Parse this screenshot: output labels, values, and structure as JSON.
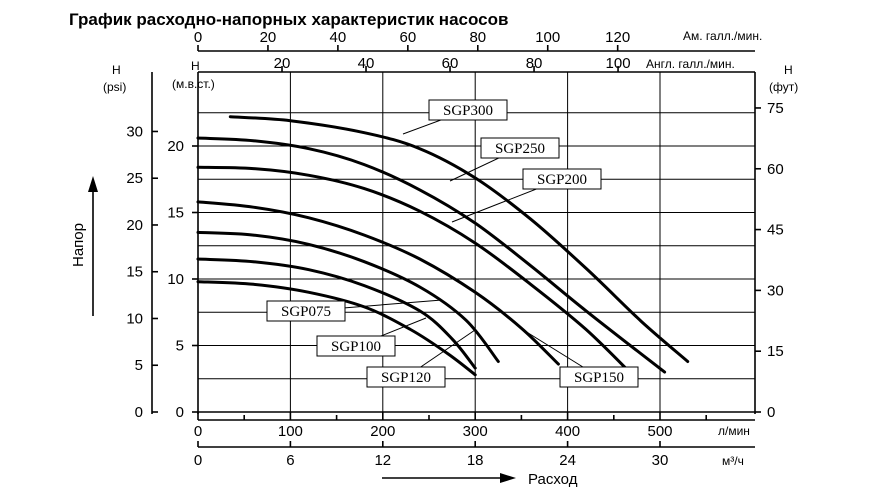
{
  "chart_data": {
    "type": "line",
    "title": "График расходно-напорных характеристик насосов",
    "xlabel": "Расход",
    "ylabel": "Напор",
    "x_unit": "л/мин",
    "x_range": [
      0,
      560
    ],
    "y_range_m": [
      0,
      23.5
    ],
    "grid": true,
    "x_ticks": [
      0,
      100,
      200,
      300,
      400,
      500
    ],
    "x2_label": "м³/ч",
    "x2_ticks": [
      "0",
      "6",
      "12",
      "18",
      "24",
      "30"
    ],
    "top_us": {
      "label": "Ам. галл./мин.",
      "ticks": [
        "0",
        "20",
        "40",
        "60",
        "80",
        "100",
        "120"
      ]
    },
    "top_uk": {
      "label": "Англ. галл./мин.",
      "ticks": [
        "20",
        "40",
        "60",
        "80",
        "100"
      ]
    },
    "left_psi": {
      "label_h": "H",
      "label_unit": "(psi)",
      "ticks": [
        "0",
        "5",
        "10",
        "15",
        "20",
        "25",
        "30"
      ]
    },
    "left_m": {
      "label_h": "H",
      "label_unit": "(м.в.ст.)",
      "ticks": [
        "0",
        "5",
        "10",
        "15",
        "20"
      ]
    },
    "right_ft": {
      "label_h": "H",
      "label_unit": "(фут)",
      "ticks": [
        "0",
        "15",
        "30",
        "45",
        "60",
        "75"
      ]
    },
    "series": [
      {
        "name": "SGP300",
        "x": [
          35,
          100,
          180,
          240,
          300,
          360,
          420,
          480,
          530
        ],
        "y": [
          22.2,
          21.9,
          21.0,
          19.8,
          17.6,
          14.5,
          10.8,
          6.8,
          3.8
        ]
      },
      {
        "name": "SGP250",
        "x": [
          0,
          60,
          120,
          180,
          240,
          300,
          360,
          420,
          505
        ],
        "y": [
          20.6,
          20.4,
          19.8,
          18.6,
          16.7,
          14.2,
          11.0,
          7.6,
          3.0
        ]
      },
      {
        "name": "SGP200",
        "x": [
          0,
          60,
          120,
          180,
          240,
          300,
          360,
          420,
          470
        ],
        "y": [
          18.4,
          18.3,
          17.8,
          16.8,
          15.1,
          12.7,
          9.6,
          6.2,
          2.8
        ]
      },
      {
        "name": "SGP150",
        "x": [
          0,
          60,
          120,
          180,
          240,
          300,
          350,
          390
        ],
        "y": [
          15.8,
          15.4,
          14.6,
          13.3,
          11.5,
          9.0,
          6.3,
          3.6
        ]
      },
      {
        "name": "SGP120",
        "x": [
          0,
          60,
          120,
          180,
          240,
          290,
          325
        ],
        "y": [
          13.5,
          13.3,
          12.6,
          11.3,
          9.4,
          6.9,
          3.8
        ]
      },
      {
        "name": "SGP100",
        "x": [
          0,
          60,
          120,
          180,
          240,
          275,
          300
        ],
        "y": [
          11.5,
          11.3,
          10.7,
          9.5,
          7.6,
          5.5,
          3.3
        ]
      },
      {
        "name": "SGP075",
        "x": [
          0,
          60,
          120,
          180,
          230,
          270,
          300
        ],
        "y": [
          9.8,
          9.6,
          9.0,
          7.9,
          6.2,
          4.4,
          2.8
        ]
      }
    ]
  }
}
